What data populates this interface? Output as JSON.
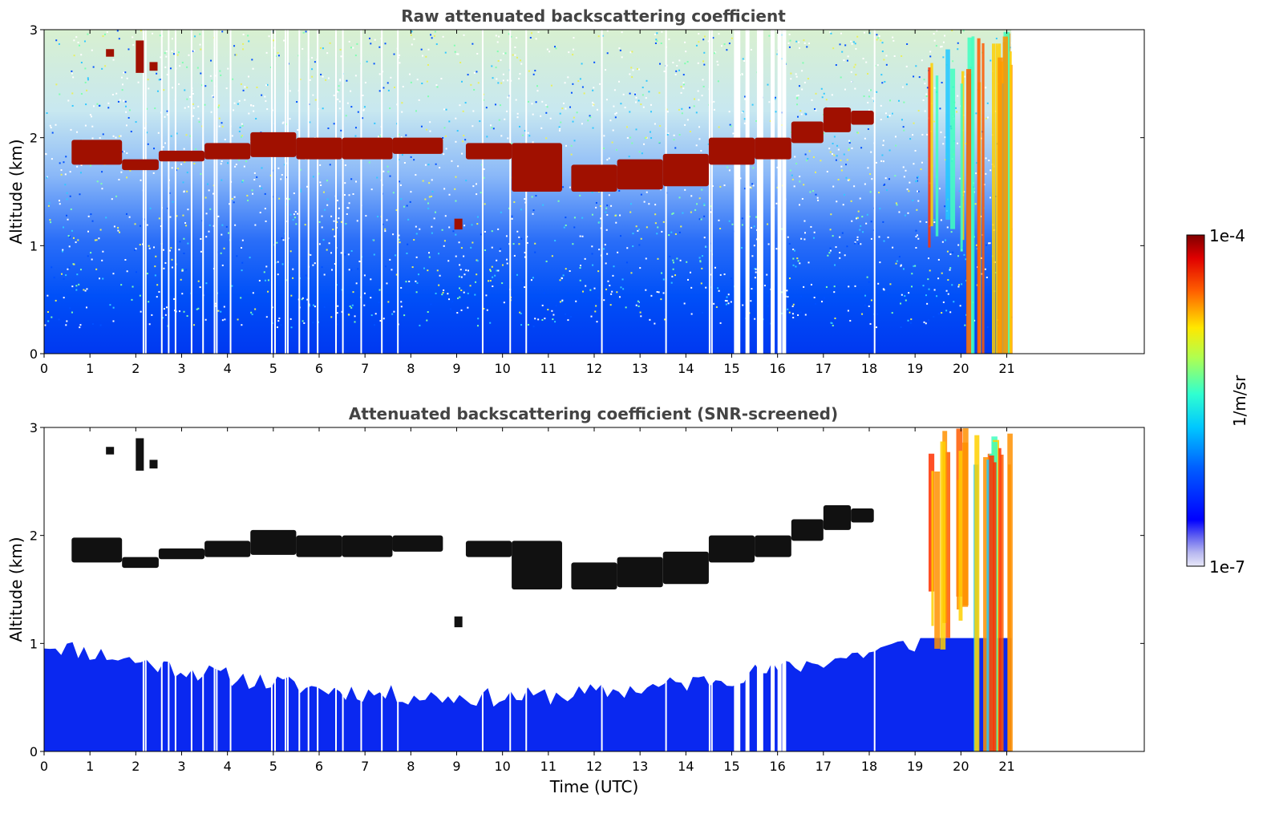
{
  "chart_data": [
    {
      "type": "heatmap",
      "title": "Raw attenuated backscattering coefficient",
      "xlabel": "",
      "ylabel": "Altitude (km)",
      "xlim": [
        0,
        24
      ],
      "ylim": [
        0,
        3
      ],
      "xticks": [
        "0",
        "1",
        "2",
        "3",
        "4",
        "5",
        "6",
        "7",
        "8",
        "9",
        "10",
        "11",
        "12",
        "13",
        "14",
        "15",
        "16",
        "17",
        "18",
        "19",
        "20",
        "21"
      ],
      "yticks": [
        "0",
        "1",
        "2",
        "3"
      ],
      "data_extent_hours": [
        0,
        21.1
      ],
      "screened": false,
      "cloud_layer": [
        {
          "t": 0.6,
          "bottom": 1.75,
          "top": 1.98
        },
        {
          "t": 1.7,
          "bottom": 1.7,
          "top": 1.8
        },
        {
          "t": 2.5,
          "bottom": 1.78,
          "top": 1.88
        },
        {
          "t": 3.5,
          "bottom": 1.8,
          "top": 1.95
        },
        {
          "t": 4.5,
          "bottom": 1.82,
          "top": 2.05
        },
        {
          "t": 5.5,
          "bottom": 1.8,
          "top": 2.0
        },
        {
          "t": 6.5,
          "bottom": 1.8,
          "top": 2.0
        },
        {
          "t": 7.6,
          "bottom": 1.85,
          "top": 2.0
        },
        {
          "t": 9.2,
          "bottom": 1.8,
          "top": 1.95
        },
        {
          "t": 10.2,
          "bottom": 1.5,
          "top": 1.95
        },
        {
          "t": 11.5,
          "bottom": 1.5,
          "top": 1.75
        },
        {
          "t": 12.5,
          "bottom": 1.52,
          "top": 1.8
        },
        {
          "t": 13.5,
          "bottom": 1.55,
          "top": 1.85
        },
        {
          "t": 14.5,
          "bottom": 1.75,
          "top": 2.0
        },
        {
          "t": 15.5,
          "bottom": 1.8,
          "top": 2.0
        },
        {
          "t": 16.3,
          "bottom": 1.95,
          "top": 2.15
        },
        {
          "t": 17.0,
          "bottom": 2.05,
          "top": 2.28
        },
        {
          "t": 17.6,
          "bottom": 2.12,
          "top": 2.25
        }
      ],
      "precipitation_times": [
        19.2,
        21.1
      ]
    },
    {
      "type": "heatmap",
      "title": "Attenuated backscattering coefficient (SNR-screened)",
      "xlabel": "Time (UTC)",
      "ylabel": "Altitude (km)",
      "xlim": [
        0,
        24
      ],
      "ylim": [
        0,
        3
      ],
      "xticks": [
        "0",
        "1",
        "2",
        "3",
        "4",
        "5",
        "6",
        "7",
        "8",
        "9",
        "10",
        "11",
        "12",
        "13",
        "14",
        "15",
        "16",
        "17",
        "18",
        "19",
        "20",
        "21"
      ],
      "yticks": [
        "0",
        "1",
        "2",
        "3"
      ],
      "data_extent_hours": [
        0,
        21.1
      ],
      "screened": true
    }
  ],
  "colorbar": {
    "label": "1/m/sr",
    "max_label": "1e-4",
    "min_label": "1e-7",
    "scale": "log",
    "range": [
      1e-07,
      0.0001
    ],
    "colormap": "jet"
  }
}
